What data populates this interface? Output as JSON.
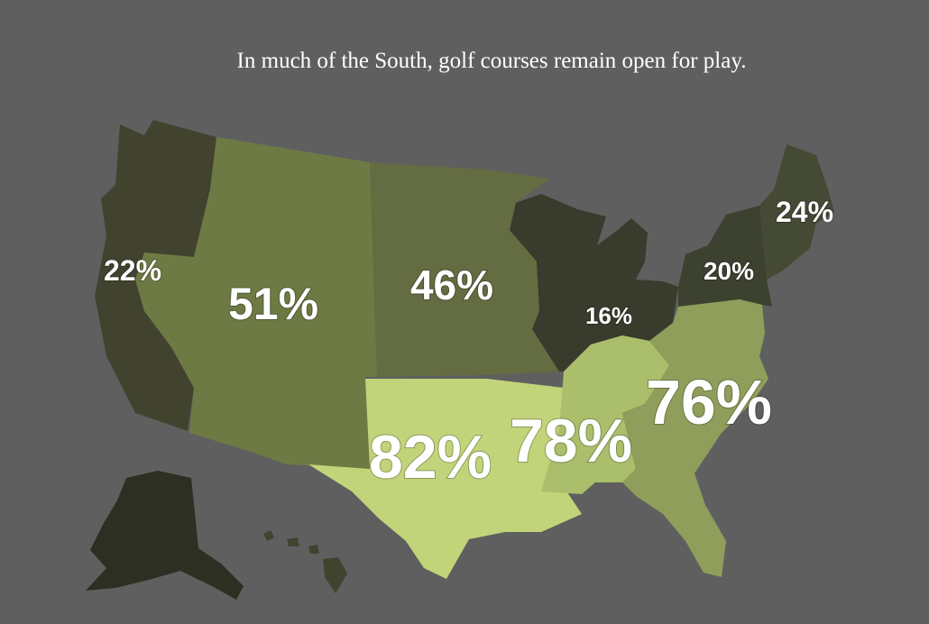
{
  "title": "In much of the South, golf courses remain open for play.",
  "colors": {
    "background": "#5f5f60",
    "west_coast": "#41432f",
    "mountain": "#6e7a43",
    "plains": "#646c42",
    "midwest": "#393b2c",
    "northeast": "#3d4130",
    "new_england": "#454a34",
    "south_central": "#c2d47a",
    "southeast_central": "#abbe6b",
    "south_atlantic": "#8f9e5b",
    "alaska": "#2d2f22",
    "hawaii": "#41432f"
  },
  "regions": [
    {
      "id": "west-coast",
      "label": "22%",
      "value": 22
    },
    {
      "id": "mountain",
      "label": "51%",
      "value": 51
    },
    {
      "id": "plains",
      "label": "46%",
      "value": 46
    },
    {
      "id": "midwest",
      "label": "16%",
      "value": 16
    },
    {
      "id": "mid-atlantic",
      "label": "20%",
      "value": 20
    },
    {
      "id": "new-england",
      "label": "24%",
      "value": 24
    },
    {
      "id": "south-central",
      "label": "82%",
      "value": 82
    },
    {
      "id": "southeast-central",
      "label": "78%",
      "value": 78
    },
    {
      "id": "south-atlantic",
      "label": "76%",
      "value": 76
    }
  ]
}
